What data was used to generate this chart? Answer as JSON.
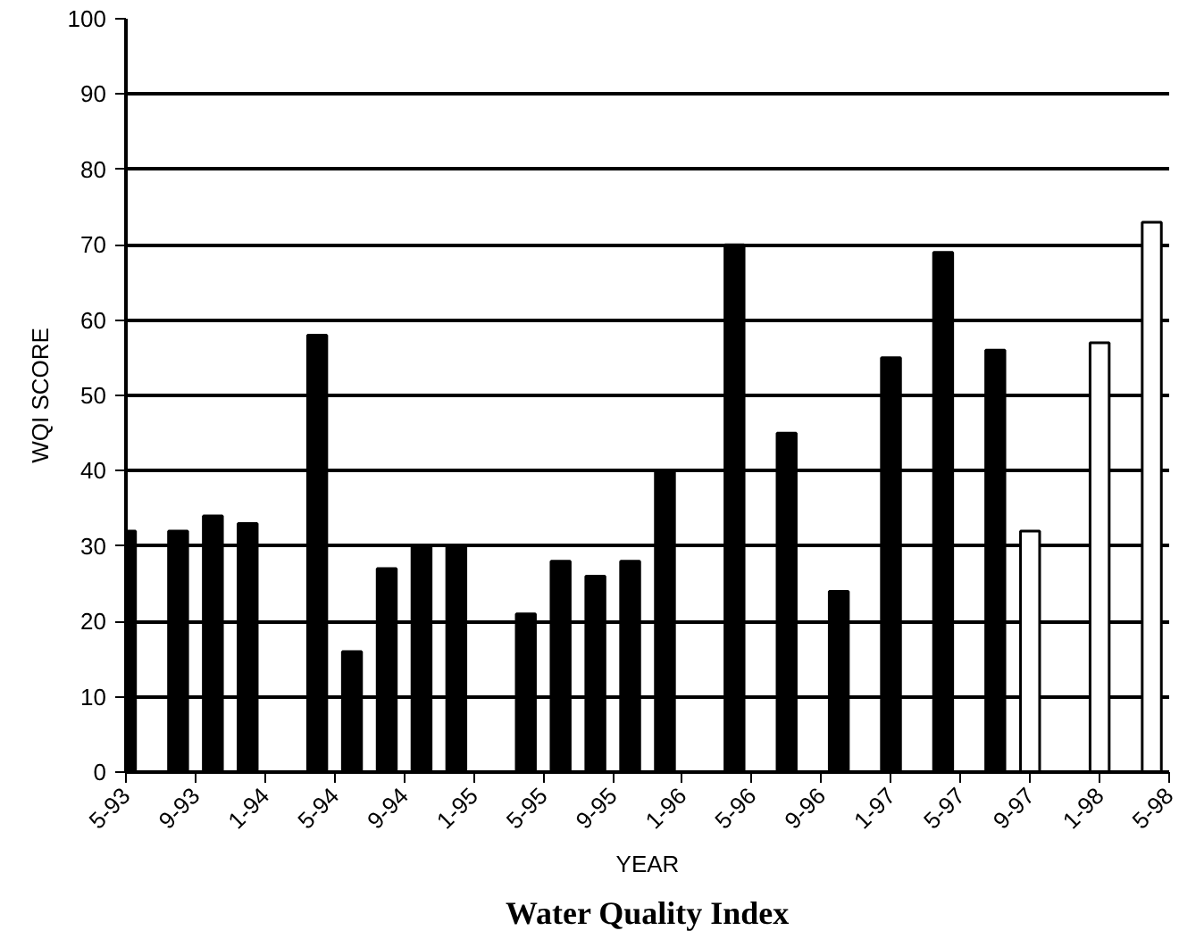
{
  "chart_data": {
    "type": "bar",
    "title": "Water Quality Index",
    "xlabel": "YEAR",
    "ylabel": "WQI SCORE",
    "xlim": [
      "1993-05",
      "1998-05"
    ],
    "xticks": [
      {
        "value": "1993-05",
        "label": "5-93"
      },
      {
        "value": "1993-09",
        "label": "9-93"
      },
      {
        "value": "1994-01",
        "label": "1-94"
      },
      {
        "value": "1994-05",
        "label": "5-94"
      },
      {
        "value": "1994-09",
        "label": "9-94"
      },
      {
        "value": "1995-01",
        "label": "1-95"
      },
      {
        "value": "1995-05",
        "label": "5-95"
      },
      {
        "value": "1995-09",
        "label": "9-95"
      },
      {
        "value": "1996-01",
        "label": "1-96"
      },
      {
        "value": "1996-05",
        "label": "5-96"
      },
      {
        "value": "1996-09",
        "label": "9-96"
      },
      {
        "value": "1997-01",
        "label": "1-97"
      },
      {
        "value": "1997-05",
        "label": "5-97"
      },
      {
        "value": "1997-09",
        "label": "9-97"
      },
      {
        "value": "1998-01",
        "label": "1-98"
      },
      {
        "value": "1998-05",
        "label": "5-98"
      }
    ],
    "ylim": [
      0,
      100
    ],
    "yticks": [
      0,
      10,
      20,
      30,
      40,
      50,
      60,
      70,
      80,
      90,
      100
    ],
    "grid": "y",
    "series": [
      {
        "color": "#000000",
        "x": [
          "1993-05",
          "1993-08",
          "1993-10",
          "1993-12",
          "1994-04",
          "1994-06",
          "1994-08",
          "1994-10",
          "1994-12",
          "1995-04",
          "1995-06",
          "1995-08",
          "1995-10",
          "1995-12",
          "1996-04",
          "1996-07",
          "1996-10",
          "1997-01",
          "1997-04",
          "1997-07"
        ],
        "values": [
          32,
          32,
          34,
          33,
          58,
          16,
          27,
          30,
          30,
          21,
          28,
          26,
          28,
          40,
          70,
          45,
          24,
          55,
          69,
          56
        ]
      },
      {
        "color": "#ffffff",
        "x": [
          "1997-09",
          "1998-01",
          "1998-04"
        ],
        "values": [
          32,
          57,
          73
        ]
      }
    ]
  }
}
